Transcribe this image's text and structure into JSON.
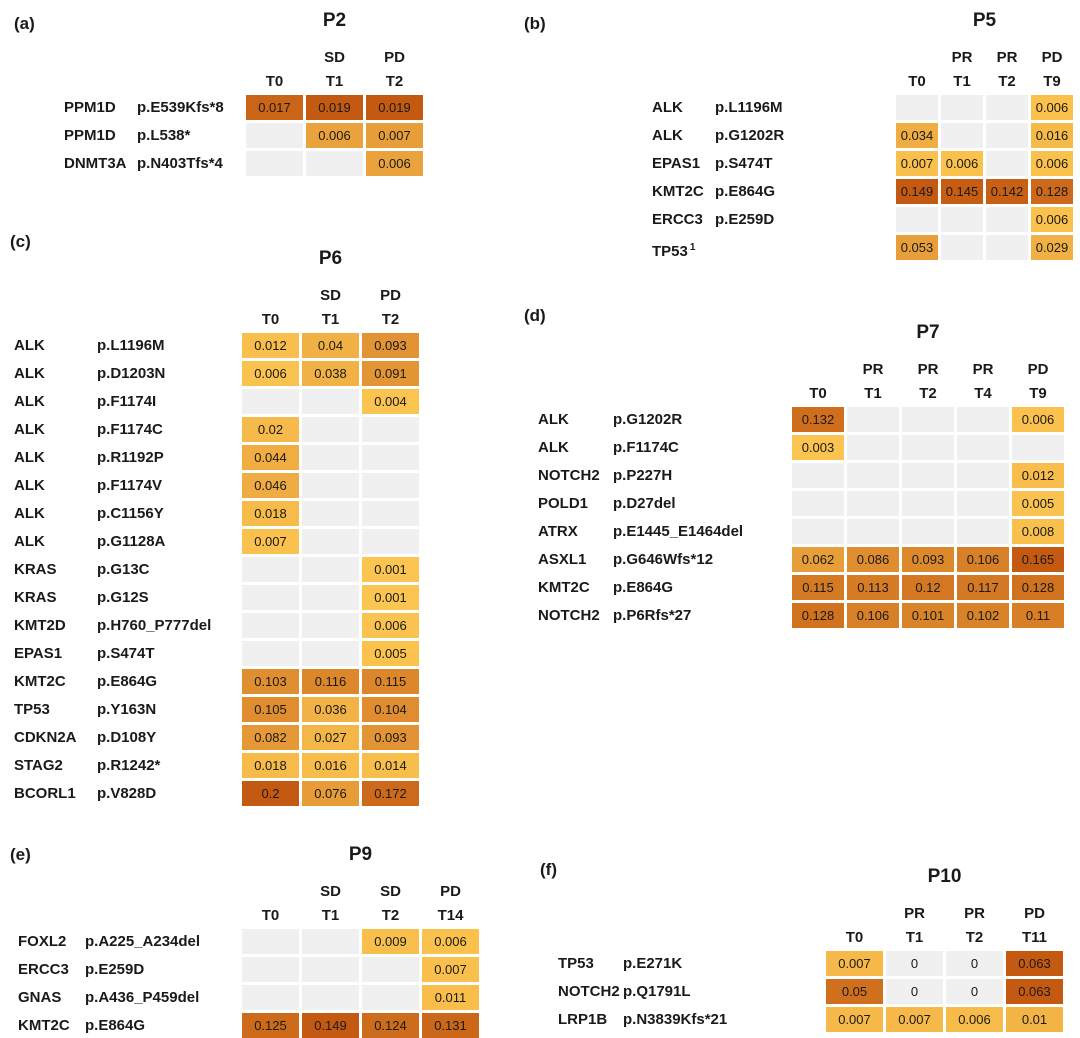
{
  "colors": {
    "scale_low": "#FCC550",
    "scale_high": "#C45A11",
    "empty_cell": "#F0F0F1",
    "text": "#1a1a1a"
  },
  "chart_data": [
    {
      "type": "heatmap",
      "panel_label": "(a)",
      "title": "P2",
      "timepoints": [
        "T0",
        "T1",
        "T2"
      ],
      "responses": [
        "",
        "SD",
        "PD"
      ],
      "rows": [
        {
          "gene": "PPM1D",
          "protein": "p.E539Kfs*8",
          "values": [
            0.017,
            0.019,
            0.019
          ]
        },
        {
          "gene": "PPM1D",
          "protein": "p.L538*",
          "values": [
            null,
            0.006,
            0.007
          ]
        },
        {
          "gene": "DNMT3A",
          "protein": "p.N403Tfs*4",
          "values": [
            null,
            null,
            0.006
          ]
        }
      ]
    },
    {
      "type": "heatmap",
      "panel_label": "(b)",
      "title": "P5",
      "timepoints": [
        "T0",
        "T1",
        "T2",
        "T9"
      ],
      "responses": [
        "",
        "PR",
        "PR",
        "PD"
      ],
      "rows": [
        {
          "gene": "ALK",
          "protein": "p.L1196M",
          "values": [
            null,
            null,
            null,
            0.006
          ]
        },
        {
          "gene": "ALK",
          "protein": "p.G1202R",
          "values": [
            0.034,
            null,
            null,
            0.016
          ]
        },
        {
          "gene": "EPAS1",
          "protein": "p.S474T",
          "values": [
            0.007,
            0.006,
            null,
            0.006
          ]
        },
        {
          "gene": "KMT2C",
          "protein": "p.E864G",
          "values": [
            0.149,
            0.145,
            0.142,
            0.128
          ]
        },
        {
          "gene": "ERCC3",
          "protein": "p.E259D",
          "values": [
            null,
            null,
            null,
            0.006
          ]
        },
        {
          "gene": "TP53",
          "gene_sup": "1",
          "protein": "",
          "values": [
            0.053,
            null,
            null,
            0.029
          ]
        }
      ]
    },
    {
      "type": "heatmap",
      "panel_label": "(c)",
      "title": "P6",
      "timepoints": [
        "T0",
        "T1",
        "T2"
      ],
      "responses": [
        "",
        "SD",
        "PD"
      ],
      "rows": [
        {
          "gene": "ALK",
          "protein": "p.L1196M",
          "values": [
            0.012,
            0.04,
            0.093
          ]
        },
        {
          "gene": "ALK",
          "protein": "p.D1203N",
          "values": [
            0.006,
            0.038,
            0.091
          ]
        },
        {
          "gene": "ALK",
          "protein": "p.F1174I",
          "values": [
            null,
            null,
            0.004
          ]
        },
        {
          "gene": "ALK",
          "protein": "p.F1174C",
          "values": [
            0.02,
            null,
            null
          ]
        },
        {
          "gene": "ALK",
          "protein": "p.R1192P",
          "values": [
            0.044,
            null,
            null
          ]
        },
        {
          "gene": "ALK",
          "protein": "p.F1174V",
          "values": [
            0.046,
            null,
            null
          ]
        },
        {
          "gene": "ALK",
          "protein": "p.C1156Y",
          "values": [
            0.018,
            null,
            null
          ]
        },
        {
          "gene": "ALK",
          "protein": "p.G1128A",
          "values": [
            0.007,
            null,
            null
          ]
        },
        {
          "gene": "KRAS",
          "protein": "p.G13C",
          "values": [
            null,
            null,
            0.001
          ]
        },
        {
          "gene": "KRAS",
          "protein": "p.G12S",
          "values": [
            null,
            null,
            0.001
          ]
        },
        {
          "gene": "KMT2D",
          "protein": "p.H760_P777del",
          "values": [
            null,
            null,
            0.006
          ]
        },
        {
          "gene": "EPAS1",
          "protein": "p.S474T",
          "values": [
            null,
            null,
            0.005
          ]
        },
        {
          "gene": "KMT2C",
          "protein": "p.E864G",
          "values": [
            0.103,
            0.116,
            0.115
          ]
        },
        {
          "gene": "TP53",
          "protein": "p.Y163N",
          "values": [
            0.105,
            0.036,
            0.104
          ]
        },
        {
          "gene": "CDKN2A",
          "protein": "p.D108Y",
          "values": [
            0.082,
            0.027,
            0.093
          ]
        },
        {
          "gene": "STAG2",
          "protein": "p.R1242*",
          "values": [
            0.018,
            0.016,
            0.014
          ]
        },
        {
          "gene": "BCORL1",
          "protein": "p.V828D",
          "values": [
            0.2,
            0.076,
            0.172
          ]
        }
      ]
    },
    {
      "type": "heatmap",
      "panel_label": "(d)",
      "title": "P7",
      "timepoints": [
        "T0",
        "T1",
        "T2",
        "T4",
        "T9"
      ],
      "responses": [
        "",
        "PR",
        "PR",
        "PR",
        "PD"
      ],
      "rows": [
        {
          "gene": "ALK",
          "protein": "p.G1202R",
          "values": [
            0.132,
            null,
            null,
            null,
            0.006
          ]
        },
        {
          "gene": "ALK",
          "protein": "p.F1174C",
          "values": [
            0.003,
            null,
            null,
            null,
            null
          ]
        },
        {
          "gene": "NOTCH2",
          "protein": "p.P227H",
          "values": [
            null,
            null,
            null,
            null,
            0.012
          ]
        },
        {
          "gene": "POLD1",
          "protein": "p.D27del",
          "values": [
            null,
            null,
            null,
            null,
            0.005
          ]
        },
        {
          "gene": "ATRX",
          "protein": "p.E1445_E1464del",
          "values": [
            null,
            null,
            null,
            null,
            0.008
          ]
        },
        {
          "gene": "ASXL1",
          "protein": "p.G646Wfs*12",
          "values": [
            0.062,
            0.086,
            0.093,
            0.106,
            0.165
          ]
        },
        {
          "gene": "KMT2C",
          "protein": "p.E864G",
          "values": [
            0.115,
            0.113,
            0.12,
            0.117,
            0.128
          ]
        },
        {
          "gene": "NOTCH2",
          "protein": "p.P6Rfs*27",
          "values": [
            0.128,
            0.106,
            0.101,
            0.102,
            0.11
          ]
        }
      ]
    },
    {
      "type": "heatmap",
      "panel_label": "(e)",
      "title": "P9",
      "timepoints": [
        "T0",
        "T1",
        "T2",
        "T14"
      ],
      "responses": [
        "",
        "SD",
        "SD",
        "PD"
      ],
      "rows": [
        {
          "gene": "FOXL2",
          "protein": "p.A225_A234del",
          "values": [
            null,
            null,
            0.009,
            0.006
          ]
        },
        {
          "gene": "ERCC3",
          "protein": "p.E259D",
          "values": [
            null,
            null,
            null,
            0.007
          ]
        },
        {
          "gene": "GNAS",
          "protein": "p.A436_P459del",
          "values": [
            null,
            null,
            null,
            0.011
          ]
        },
        {
          "gene": "KMT2C",
          "protein": "p.E864G",
          "values": [
            0.125,
            0.149,
            0.124,
            0.131
          ]
        }
      ]
    },
    {
      "type": "heatmap",
      "panel_label": "(f)",
      "title": "P10",
      "timepoints": [
        "T0",
        "T1",
        "T2",
        "T11"
      ],
      "responses": [
        "",
        "PR",
        "PR",
        "PD"
      ],
      "rows": [
        {
          "gene": "TP53",
          "protein": "p.E271K",
          "values": [
            0.007,
            0,
            0,
            0.063
          ]
        },
        {
          "gene": "NOTCH2",
          "protein": "p.Q1791L",
          "values": [
            0.05,
            0,
            0,
            0.063
          ]
        },
        {
          "gene": "LRP1B",
          "protein": "p.N3839Kfs*21",
          "values": [
            0.007,
            0.007,
            0.006,
            0.01
          ]
        }
      ]
    }
  ]
}
